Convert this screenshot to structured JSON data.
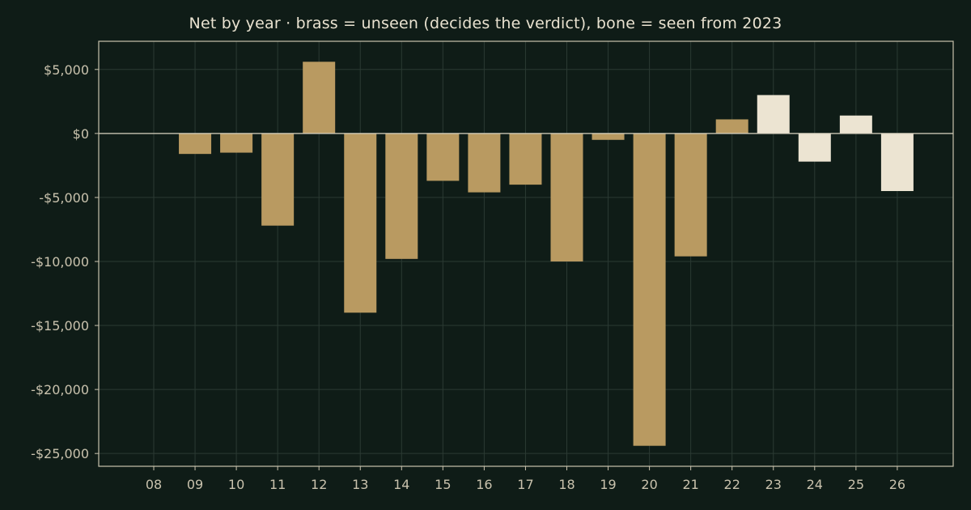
{
  "chart_data": {
    "type": "bar",
    "title": "Net by year  ·  brass = unseen (decides the verdict), bone = seen from 2023",
    "xlabel": "",
    "ylabel": "",
    "categories": [
      "08",
      "09",
      "10",
      "11",
      "12",
      "13",
      "14",
      "15",
      "16",
      "17",
      "18",
      "19",
      "20",
      "21",
      "22",
      "23",
      "24",
      "25",
      "26"
    ],
    "values": [
      0,
      -1600,
      -1500,
      -7200,
      5600,
      -14000,
      -9800,
      -3700,
      -4600,
      -4000,
      -10000,
      -500,
      -24400,
      -9600,
      1100,
      3000,
      -2200,
      1400,
      -4500
    ],
    "seen": [
      false,
      false,
      false,
      false,
      false,
      false,
      false,
      false,
      false,
      false,
      false,
      false,
      false,
      false,
      false,
      true,
      true,
      true,
      true
    ],
    "ylim": [
      -26000,
      7200
    ],
    "yticks": [
      5000,
      0,
      -5000,
      -10000,
      -15000,
      -20000,
      -25000
    ],
    "ytick_labels": [
      "$5,000",
      "$0",
      "-$5,000",
      "-$10,000",
      "-$15,000",
      "-$20,000",
      "-$25,000"
    ],
    "grid": true,
    "colors": {
      "background": "#0f1c17",
      "unseen": "#b99a61",
      "seen": "#ece4d2",
      "axis": "#c9c2ad",
      "grid": "#2b3a33",
      "zero_line": "#d8d2c0"
    }
  }
}
